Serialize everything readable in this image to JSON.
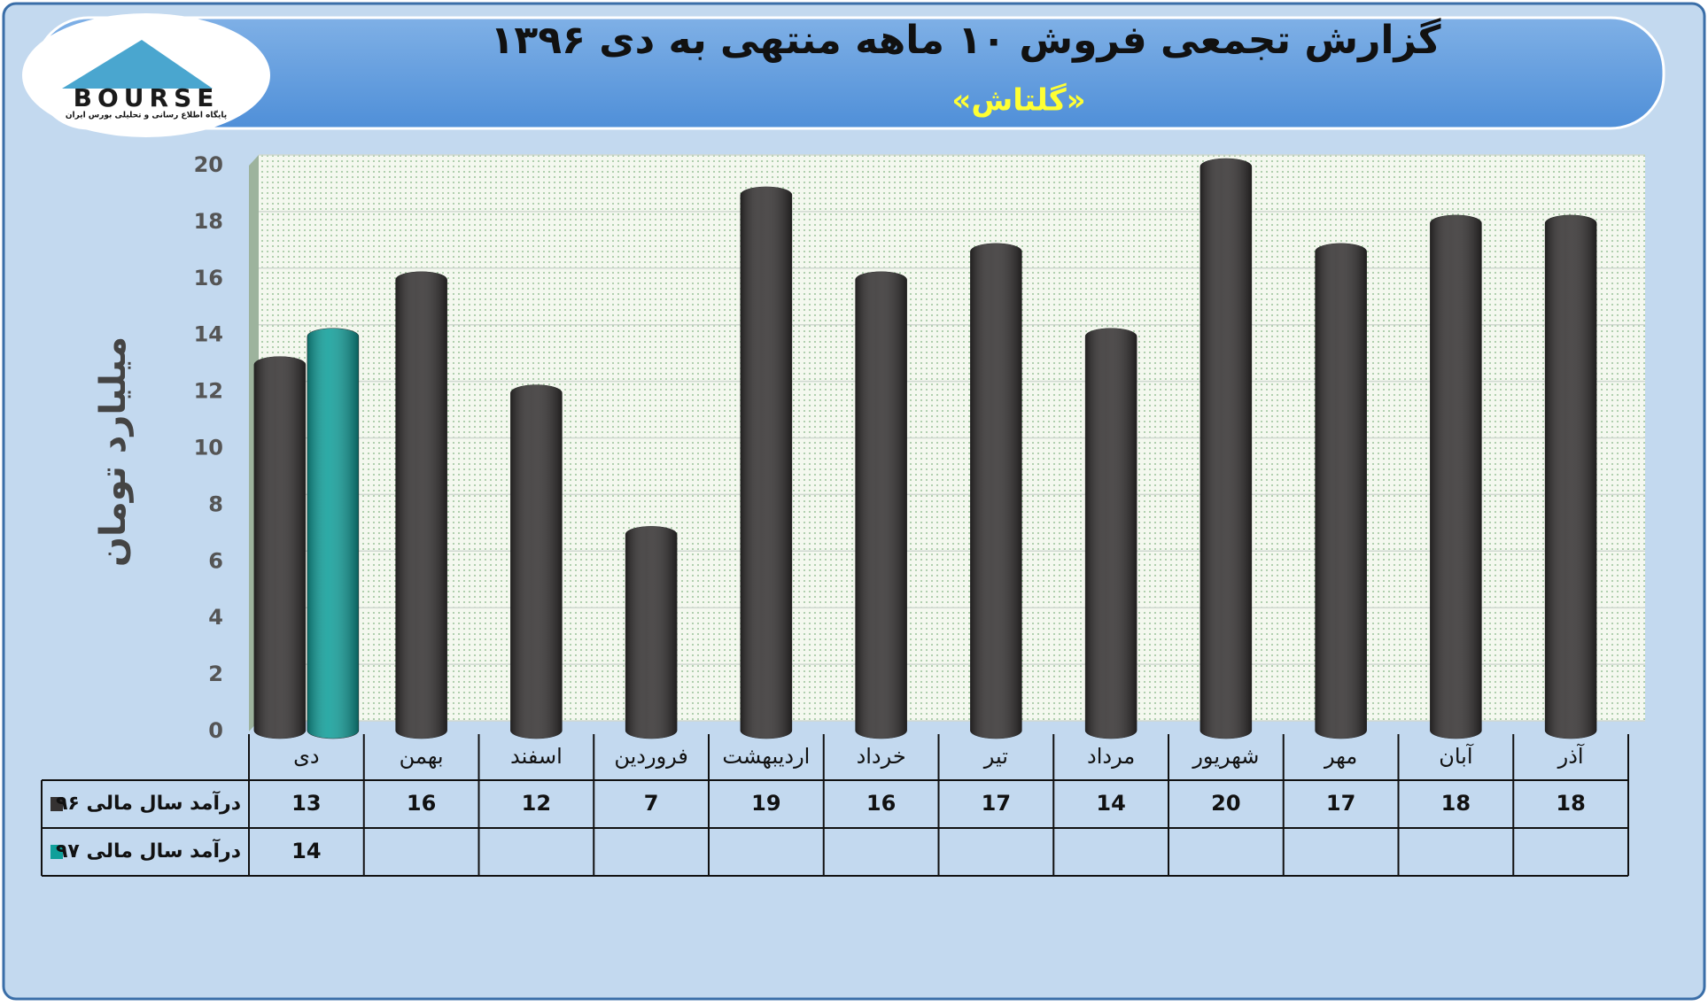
{
  "logo": {
    "name": "BOURSE",
    "tagline": "پایگاه اطلاع رسانی و تحلیلی بورس ایران"
  },
  "chart_data": {
    "type": "bar",
    "title": "گزارش تجمعی فروش ۱۰ ماهه منتهی به دی ۱۳۹۶",
    "subtitle": "«گلتاش»",
    "y_label": "میلیارد تومان",
    "categories": [
      "دی",
      "بهمن",
      "اسفند",
      "فروردین",
      "اردیبهشت",
      "خرداد",
      "تیر",
      "مرداد",
      "شهریور",
      "مهر",
      "آبان",
      "آذر"
    ],
    "series": [
      {
        "name": "درآمد سال مالی ۹۶",
        "color": "#353232",
        "values": [
          13,
          16,
          12,
          7,
          19,
          16,
          17,
          14,
          20,
          17,
          18,
          18
        ]
      },
      {
        "name": "درآمد سال مالی ۹۷",
        "color": "#109f9a",
        "values": [
          14,
          null,
          null,
          null,
          null,
          null,
          null,
          null,
          null,
          null,
          null,
          null
        ]
      }
    ],
    "ylim": [
      0,
      20
    ],
    "yticks": [
      0,
      2,
      4,
      6,
      8,
      10,
      12,
      14,
      16,
      18,
      20
    ],
    "grid": true
  }
}
